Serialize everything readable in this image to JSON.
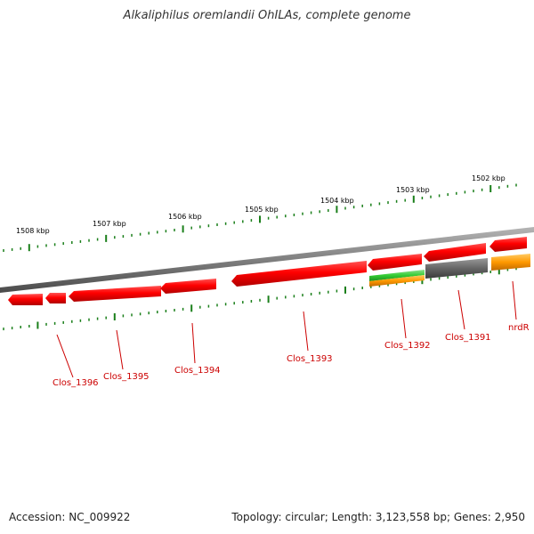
{
  "title": "Alkaliphilus oremlandii OhILAs, complete genome",
  "footer": {
    "accession": "Accession: NC_009922",
    "summary": "Topology: circular; Length: 3,123,558 bp; Genes: 2,950"
  },
  "colors": {
    "background": "#ffffff",
    "backbone": "#7f7f7f",
    "ticks": "#1a7f1a",
    "gene_red": "#ff0000",
    "gene_label": "#cc0000",
    "green_feature": "#33cc33",
    "orange_feature": "#ff9900",
    "gray_feature": "#666666"
  },
  "kbp_labels": [
    "1508 kbp",
    "1507 kbp",
    "1506 kbp",
    "1505 kbp",
    "1504 kbp",
    "1503 kbp",
    "1502 kbp"
  ],
  "genes": [
    {
      "label": "Clos_1396"
    },
    {
      "label": "Clos_1395"
    },
    {
      "label": "Clos_1394"
    },
    {
      "label": "Clos_1393"
    },
    {
      "label": "Clos_1392"
    },
    {
      "label": "Clos_1391"
    },
    {
      "label": "nrdR"
    }
  ]
}
